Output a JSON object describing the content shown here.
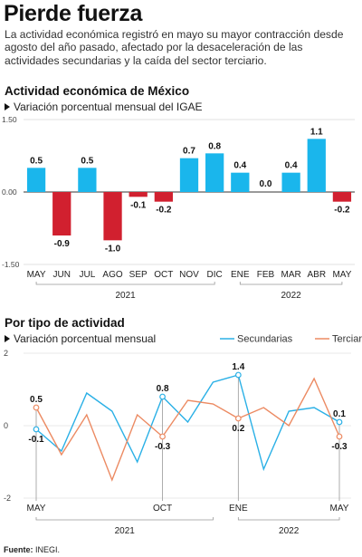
{
  "headline": "Pierde fuerza",
  "intro": "La actividad económica registró en mayo su mayor contracción desde agosto del año pasado, afectado por la desaceleración de las actividades secundarias y la caída del sector terciario.",
  "source_label": "Fuente:",
  "source_value": "INEGI.",
  "chart_data": [
    {
      "type": "bar",
      "title": "Actividad económica de México",
      "subtitle": "Variación porcentual mensual del IGAE",
      "categories": [
        "MAY",
        "JUN",
        "JUL",
        "AGO",
        "SEP",
        "OCT",
        "NOV",
        "DIC",
        "ENE",
        "FEB",
        "MAR",
        "ABR",
        "MAY"
      ],
      "values": [
        0.5,
        -0.9,
        0.5,
        -1.0,
        -0.1,
        -0.2,
        0.7,
        0.8,
        0.4,
        0.0,
        0.4,
        1.1,
        -0.2
      ],
      "value_labels": [
        "0.5",
        "-0.9",
        "0.5",
        "-1.0",
        "-0.1",
        "-0.2",
        "0.7",
        "0.8",
        "0.4",
        "0.0",
        "0.4",
        "1.1",
        "-0.2"
      ],
      "ylim": [
        -1.5,
        1.5
      ],
      "yticks": [
        "1.50",
        "0.00",
        "-1.50"
      ],
      "years": [
        "2021",
        "2022"
      ],
      "colors": {
        "positive": "#1ab6ec",
        "negative": "#d1202f"
      }
    },
    {
      "type": "line",
      "title": "Por tipo de actividad",
      "subtitle": "Variación porcentual mensual",
      "ylim": [
        -2,
        2
      ],
      "yticks": [
        "2",
        "0",
        "-2"
      ],
      "xticks": [
        "MAY",
        "OCT",
        "ENE",
        "MAY"
      ],
      "years": [
        "2021",
        "2022"
      ],
      "series": [
        {
          "name": "Secundarias",
          "color": "#2ab0e6",
          "values": [
            -0.1,
            -0.7,
            0.9,
            0.4,
            -1.0,
            0.8,
            0.1,
            1.2,
            1.4,
            -1.2,
            0.4,
            0.5,
            0.1
          ]
        },
        {
          "name": "Terciarias",
          "color": "#ec8a62",
          "values": [
            0.5,
            -0.8,
            0.3,
            -1.5,
            0.3,
            -0.3,
            0.7,
            0.6,
            0.2,
            0.5,
            0.0,
            1.3,
            -0.3
          ]
        }
      ],
      "annotations": [
        {
          "series": 0,
          "index": 0,
          "label": "-0.1"
        },
        {
          "series": 1,
          "index": 0,
          "label": "0.5"
        },
        {
          "series": 0,
          "index": 5,
          "label": "0.8"
        },
        {
          "series": 1,
          "index": 5,
          "label": "-0.3"
        },
        {
          "series": 0,
          "index": 8,
          "label": "1.4"
        },
        {
          "series": 1,
          "index": 8,
          "label": "0.2"
        },
        {
          "series": 0,
          "index": 12,
          "label": "0.1"
        },
        {
          "series": 1,
          "index": 12,
          "label": "-0.3"
        }
      ]
    }
  ]
}
